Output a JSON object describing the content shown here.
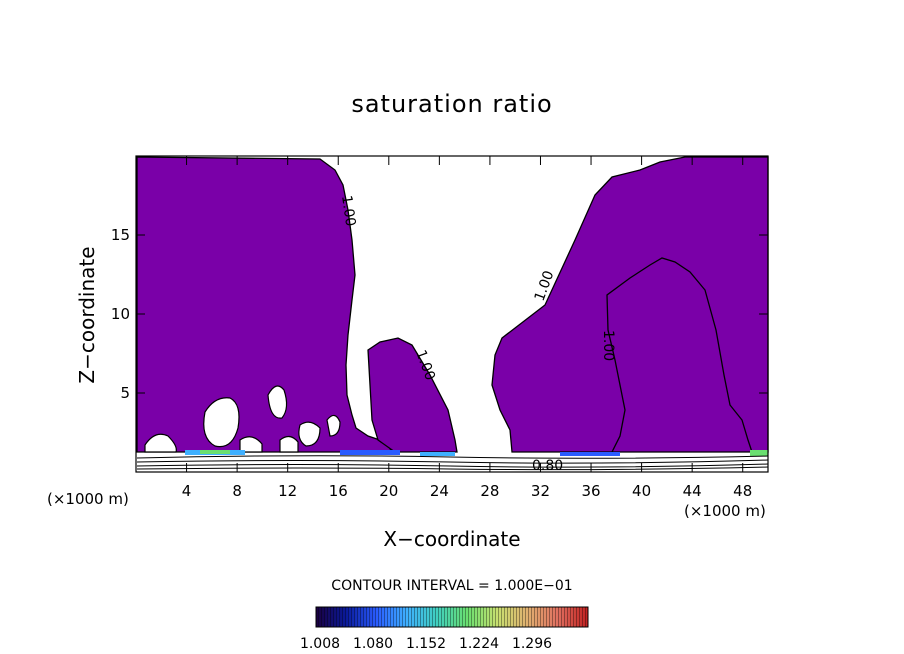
{
  "chart_data": {
    "type": "contour",
    "title": "saturation ratio",
    "xlabel": "X−coordinate",
    "ylabel": "Z−coordinate",
    "x_unit": "(×1000 m)",
    "z_unit": "(×1000 m)",
    "x_ticks": [
      4,
      8,
      12,
      16,
      20,
      24,
      28,
      32,
      36,
      40,
      44,
      48
    ],
    "z_ticks": [
      5,
      10,
      15
    ],
    "xlim": [
      0,
      50
    ],
    "zlim": [
      0,
      20
    ],
    "contour_interval_text": "CONTOUR INTERVAL = 1.000E−01",
    "contour_labels": [
      "1.00",
      "1.00",
      "1.00",
      "1.00",
      "0.80"
    ],
    "fill_color": "#7a00a8",
    "colorbar": {
      "tick_labels": [
        "1.008",
        "1.080",
        "1.152",
        "1.224",
        "1.296"
      ],
      "colors": [
        "#1a0040",
        "#0a1a9a",
        "#2a5cff",
        "#3fb0ff",
        "#40d0c0",
        "#6adf70",
        "#c8e070",
        "#e0b070",
        "#e07060",
        "#c02020"
      ]
    }
  }
}
